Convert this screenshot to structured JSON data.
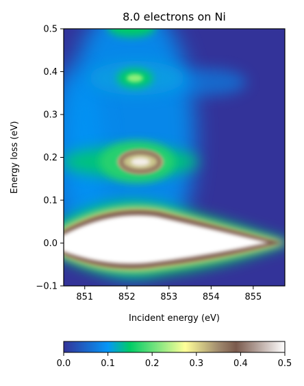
{
  "chart_data": {
    "type": "heatmap",
    "title": "8.0 electrons on Ni",
    "xlabel": "Incident energy (eV)",
    "ylabel": "Energy loss (eV)",
    "xlim": [
      850.5,
      855.75
    ],
    "ylim": [
      -0.1,
      0.5
    ],
    "x_ticks": [
      851,
      852,
      853,
      854,
      855
    ],
    "x_tick_labels": [
      "851",
      "852",
      "853",
      "854",
      "855"
    ],
    "y_ticks": [
      -0.1,
      0.0,
      0.1,
      0.2,
      0.3,
      0.4,
      0.5
    ],
    "y_tick_labels": [
      "−0.1",
      "0.0",
      "0.1",
      "0.2",
      "0.3",
      "0.4",
      "0.5"
    ],
    "colorbar": {
      "orientation": "horizontal",
      "colormap": "terrain",
      "range": [
        0.0,
        0.5
      ],
      "ticks": [
        0.0,
        0.1,
        0.2,
        0.3,
        0.4,
        0.5
      ],
      "tick_labels": [
        "0.0",
        "0.1",
        "0.2",
        "0.3",
        "0.4",
        "0.5"
      ],
      "stops": [
        "#333399",
        "#0596f7",
        "#00cc66",
        "#ffff99",
        "#a08a6e",
        "#7a5a4d",
        "#ffffff"
      ]
    },
    "features": [
      {
        "x": 852.0,
        "y": 0.0,
        "value": 0.5,
        "note": "elastic peak, saturated white lobe"
      },
      {
        "x": 852.2,
        "y": 0.19,
        "value": 0.4,
        "note": "first dd excitation ring"
      },
      {
        "x": 852.2,
        "y": 0.38,
        "value": 0.2,
        "note": "second excitation"
      },
      {
        "x": 852.0,
        "y": 0.5,
        "value": 0.17,
        "note": "upper edge band"
      }
    ]
  }
}
